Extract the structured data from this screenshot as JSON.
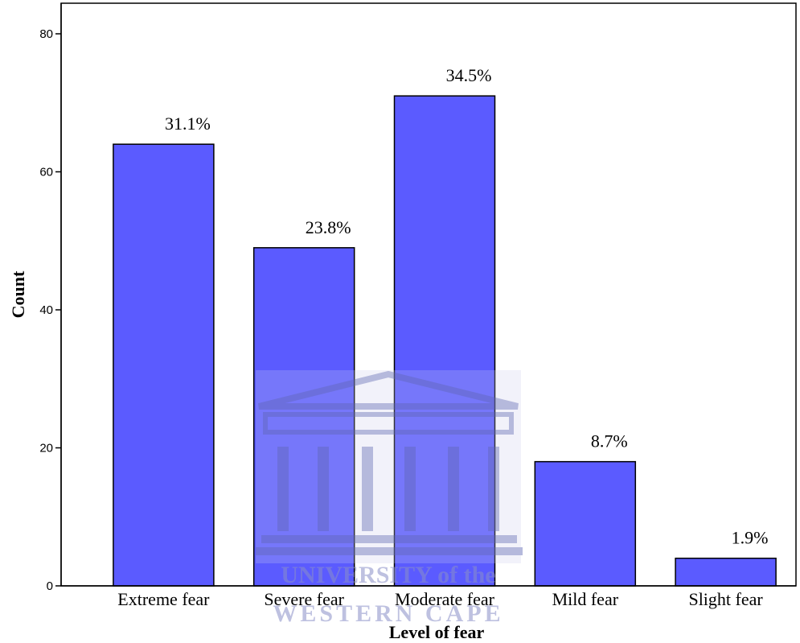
{
  "chart_data": {
    "type": "bar",
    "categories": [
      "Extreme fear",
      "Severe fear",
      "Moderate fear",
      "Mild fear",
      "Slight fear"
    ],
    "values": [
      64,
      49,
      71,
      18,
      4
    ],
    "data_labels": [
      "31.1%",
      "23.8%",
      "34.5%",
      "8.7%",
      "1.9%"
    ],
    "xlabel": "Level of fear",
    "ylabel": "Count",
    "ylim": [
      0,
      80
    ],
    "yticks": [
      0,
      20,
      40,
      60,
      80
    ],
    "grid": false,
    "bar_color": "#5b5bff",
    "bar_edge_color": "#000000"
  },
  "watermark": {
    "line1": "UNIVERSITY of the",
    "line2": "WESTERN CAPE",
    "color": "#8a8fc8"
  }
}
